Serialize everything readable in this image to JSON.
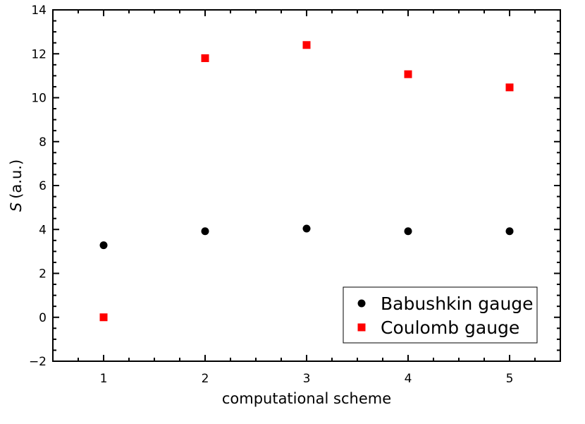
{
  "chart_data": {
    "type": "scatter",
    "xlabel": "computational scheme",
    "ylabel_symbol": "S",
    "ylabel_unit": "(a.u.)",
    "xlim": [
      0.5,
      5.5
    ],
    "ylim": [
      -2,
      14
    ],
    "xticks": [
      1,
      2,
      3,
      4,
      5
    ],
    "yticks": [
      -2,
      0,
      2,
      4,
      6,
      8,
      10,
      12,
      14
    ],
    "ytick_labels": [
      "−2",
      "0",
      "2",
      "4",
      "6",
      "8",
      "10",
      "12",
      "14"
    ],
    "grid": false,
    "legend_position": "bottom-right",
    "series": [
      {
        "name": "Babushkin gauge",
        "marker": "circle",
        "color": "#000000",
        "x": [
          1,
          2,
          3,
          4,
          5
        ],
        "y": [
          3.28,
          3.92,
          4.04,
          3.92,
          3.92
        ]
      },
      {
        "name": "Coulomb gauge",
        "marker": "square",
        "color": "#ff0000",
        "x": [
          1,
          2,
          3,
          4,
          5
        ],
        "y": [
          0.0,
          11.8,
          12.4,
          11.07,
          10.47
        ]
      }
    ]
  }
}
